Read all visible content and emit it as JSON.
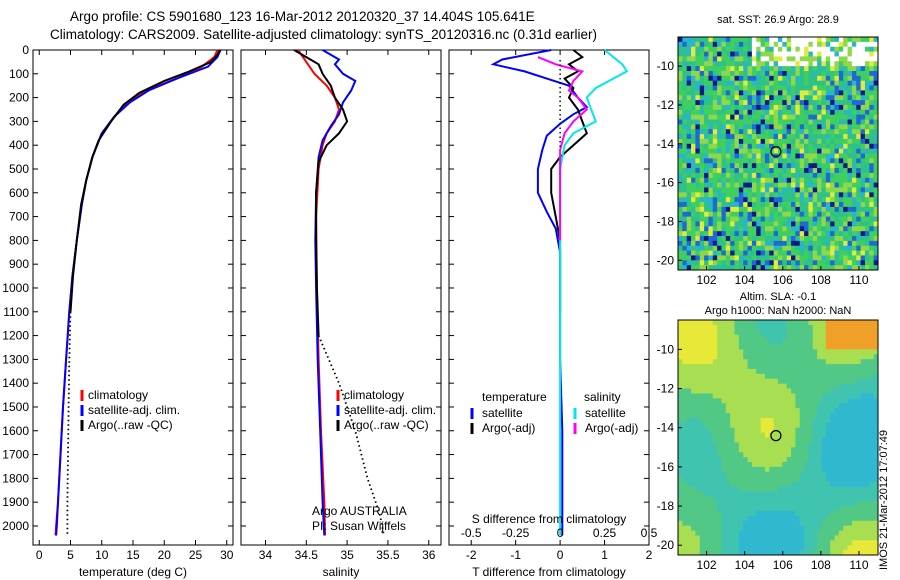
{
  "header": {
    "line1": "Argo profile: CS 5901680_123 16-Mar-2012 20120320_37 14.404S 105.641E",
    "line2": "Climatology: CARS2009. Satellite-adjusted climatology: synTS_20120316.nc (0.31d earlier)"
  },
  "map_top": {
    "title": "sat. SST: 26.9 Argo: 28.9",
    "xticks": [
      102,
      104,
      106,
      108,
      110
    ],
    "yticks": [
      -10,
      -12,
      -14,
      -16,
      -18,
      -20
    ],
    "float_lon": 105.641,
    "float_lat": -14.404,
    "xlim": [
      100.5,
      111
    ],
    "ylim": [
      -20.5,
      -8.5
    ]
  },
  "map_bottom": {
    "title1": "Altim. SLA: -0.1",
    "title2": "Argo h1000: NaN h2000: NaN",
    "xticks": [
      102,
      104,
      106,
      108,
      110
    ],
    "yticks": [
      -10,
      -12,
      -14,
      -16,
      -18,
      -20
    ],
    "float_lon": 105.641,
    "float_lat": -14.404,
    "xlim": [
      100.5,
      111
    ],
    "ylim": [
      -20.5,
      -8.5
    ]
  },
  "stamp": "IMOS 21-Mar-2012 17:07:49",
  "chart_data": [
    {
      "type": "line",
      "xlabel": "temperature (deg C)",
      "ylabel": "",
      "xlim": [
        -1,
        31
      ],
      "ylim": [
        2080,
        0
      ],
      "xticks": [
        0,
        5,
        10,
        15,
        20,
        25,
        30
      ],
      "yticks": [
        0,
        100,
        200,
        300,
        400,
        500,
        600,
        700,
        800,
        900,
        1000,
        1100,
        1200,
        1300,
        1400,
        1500,
        1600,
        1700,
        1800,
        1900,
        2000
      ],
      "legend": [
        "climatology",
        "satellite-adj. clim.",
        "Argo(..raw -QC)"
      ],
      "series": [
        {
          "name": "climatology",
          "color": "#ff0000",
          "points": [
            [
              28.5,
              0
            ],
            [
              28,
              30
            ],
            [
              26,
              70
            ],
            [
              22,
              120
            ],
            [
              17,
              170
            ],
            [
              14,
              220
            ],
            [
              12,
              280
            ],
            [
              10,
              350
            ],
            [
              8.5,
              450
            ],
            [
              7.5,
              550
            ],
            [
              6.8,
              650
            ],
            [
              6,
              800
            ],
            [
              5.3,
              950
            ],
            [
              4.8,
              1100
            ],
            [
              4.3,
              1300
            ],
            [
              3.8,
              1500
            ],
            [
              3.4,
              1700
            ],
            [
              3,
              1900
            ],
            [
              2.7,
              2000
            ],
            [
              2.6,
              2040
            ]
          ]
        },
        {
          "name": "satellite-adj. clim.",
          "color": "#0000ff",
          "points": [
            [
              29,
              0
            ],
            [
              28.5,
              30
            ],
            [
              27,
              70
            ],
            [
              22,
              120
            ],
            [
              17.5,
              170
            ],
            [
              14.5,
              220
            ],
            [
              12,
              280
            ],
            [
              10,
              350
            ],
            [
              8.5,
              450
            ],
            [
              7.5,
              550
            ],
            [
              6.8,
              650
            ],
            [
              6,
              800
            ],
            [
              5.3,
              950
            ],
            [
              4.8,
              1100
            ],
            [
              4.3,
              1300
            ],
            [
              3.8,
              1500
            ],
            [
              3.4,
              1700
            ],
            [
              3,
              1900
            ],
            [
              2.8,
              2000
            ],
            [
              2.7,
              2040
            ]
          ]
        },
        {
          "name": "Argo(..raw -QC)",
          "color": "#000000",
          "points": [
            [
              28.9,
              0
            ],
            [
              28.5,
              20
            ],
            [
              27.5,
              50
            ],
            [
              24,
              90
            ],
            [
              20,
              130
            ],
            [
              16,
              180
            ],
            [
              13.5,
              230
            ],
            [
              11.5,
              300
            ],
            [
              9.5,
              380
            ],
            [
              8.5,
              450
            ],
            [
              7.5,
              550
            ],
            [
              6.7,
              650
            ],
            [
              6,
              800
            ],
            [
              5.4,
              950
            ],
            [
              5.0,
              1100
            ]
          ]
        },
        {
          "name": "",
          "color": "#000000",
          "dotted": true,
          "points": [
            [
              5.0,
              1100
            ],
            [
              4.8,
              1300
            ],
            [
              4.7,
              1500
            ],
            [
              4.6,
              1700
            ],
            [
              4.5,
              1900
            ],
            [
              4.5,
              2040
            ]
          ]
        }
      ]
    },
    {
      "type": "line",
      "xlabel": "salinity",
      "ylabel": "",
      "xlim": [
        33.7,
        36.15
      ],
      "ylim": [
        2080,
        0
      ],
      "xticks": [
        34,
        34.5,
        35,
        35.5,
        36
      ],
      "legend": [
        "climatology",
        "satellite-adj. clim.",
        "Argo(..raw -QC)"
      ],
      "annotation": [
        "Argo AUSTRALIA",
        "PI: Susan Wijffels"
      ],
      "series": [
        {
          "name": "climatology",
          "color": "#ff0000",
          "points": [
            [
              34.4,
              0
            ],
            [
              34.5,
              50
            ],
            [
              34.6,
              100
            ],
            [
              34.75,
              150
            ],
            [
              34.85,
              200
            ],
            [
              34.9,
              250
            ],
            [
              34.85,
              300
            ],
            [
              34.75,
              350
            ],
            [
              34.7,
              400
            ],
            [
              34.65,
              500
            ],
            [
              34.62,
              700
            ],
            [
              34.63,
              1000
            ],
            [
              34.65,
              1300
            ],
            [
              34.68,
              1600
            ],
            [
              34.72,
              1900
            ],
            [
              34.73,
              2040
            ]
          ]
        },
        {
          "name": "satellite-adj. clim.",
          "color": "#0000ff",
          "points": [
            [
              34.7,
              0
            ],
            [
              34.9,
              40
            ],
            [
              34.85,
              60
            ],
            [
              34.95,
              100
            ],
            [
              35.1,
              130
            ],
            [
              35.05,
              170
            ],
            [
              34.95,
              220
            ],
            [
              34.9,
              270
            ],
            [
              34.8,
              320
            ],
            [
              34.7,
              380
            ],
            [
              34.65,
              450
            ],
            [
              34.62,
              600
            ],
            [
              34.61,
              800
            ],
            [
              34.62,
              1000
            ],
            [
              34.64,
              1300
            ],
            [
              34.67,
              1600
            ],
            [
              34.7,
              1900
            ],
            [
              34.72,
              2040
            ]
          ]
        },
        {
          "name": "Argo(..raw -QC)",
          "color": "#000000",
          "points": [
            [
              34.35,
              0
            ],
            [
              34.5,
              30
            ],
            [
              34.65,
              60
            ],
            [
              34.7,
              100
            ],
            [
              34.8,
              150
            ],
            [
              34.85,
              200
            ],
            [
              34.95,
              250
            ],
            [
              35.0,
              300
            ],
            [
              34.9,
              350
            ],
            [
              34.75,
              400
            ],
            [
              34.65,
              470
            ],
            [
              34.62,
              600
            ],
            [
              34.62,
              800
            ],
            [
              34.63,
              1000
            ],
            [
              34.65,
              1200
            ]
          ]
        },
        {
          "name": "",
          "color": "#000000",
          "dotted": true,
          "points": [
            [
              34.65,
              1200
            ],
            [
              34.9,
              1400
            ],
            [
              35.1,
              1600
            ],
            [
              35.25,
              1800
            ],
            [
              35.4,
              1950
            ],
            [
              35.45,
              2040
            ]
          ]
        }
      ]
    },
    {
      "type": "line",
      "xlabel": "T difference from climatology",
      "xlabel_top": "S difference from climatology",
      "ylabel": "",
      "xlim": [
        -2.5,
        2
      ],
      "ylim": [
        2080,
        0
      ],
      "xticks": [
        -2,
        -1,
        0,
        1,
        2
      ],
      "xticks_s": [
        "-0.5",
        "-0.25",
        "0",
        "0.25",
        "0.5"
      ],
      "legend_t_title": "temperature",
      "legend_s_title": "salinity",
      "legend": [
        "satellite",
        "Argo(-adj)",
        "satellite",
        "Argo(-adj)"
      ],
      "series": [
        {
          "name": "satellite",
          "color": "#0000ff",
          "points": [
            [
              -0.2,
              0
            ],
            [
              -1.3,
              40
            ],
            [
              -1.5,
              60
            ],
            [
              -0.8,
              90
            ],
            [
              -0.3,
              120
            ],
            [
              0.2,
              150
            ],
            [
              0.4,
              200
            ],
            [
              0.6,
              240
            ],
            [
              0.3,
              270
            ],
            [
              0.0,
              310
            ],
            [
              -0.3,
              360
            ],
            [
              -0.4,
              420
            ],
            [
              -0.5,
              500
            ],
            [
              -0.5,
              600
            ],
            [
              -0.3,
              680
            ],
            [
              -0.1,
              750
            ],
            [
              0,
              850
            ],
            [
              0,
              1000
            ],
            [
              0,
              1300
            ],
            [
              0.05,
              1600
            ],
            [
              0.05,
              1900
            ],
            [
              0.05,
              2040
            ]
          ]
        },
        {
          "name": "Argo(-adj)",
          "color": "#000000",
          "points": [
            [
              0.3,
              0
            ],
            [
              0.5,
              30
            ],
            [
              0.2,
              60
            ],
            [
              0.4,
              90
            ],
            [
              0.1,
              120
            ],
            [
              0.3,
              160
            ],
            [
              0.2,
              200
            ],
            [
              0.4,
              250
            ],
            [
              0.5,
              300
            ],
            [
              0.6,
              350
            ],
            [
              0.3,
              400
            ],
            [
              0,
              450
            ],
            [
              -0.2,
              500
            ],
            [
              -0.2,
              600
            ],
            [
              -0.1,
              700
            ],
            [
              0,
              800
            ],
            [
              0,
              1000
            ],
            [
              0,
              1100
            ]
          ]
        },
        {
          "name": "satellite",
          "color": "#00e8e8",
          "points": [
            [
              1.0,
              0
            ],
            [
              1.2,
              30
            ],
            [
              1.4,
              60
            ],
            [
              1.5,
              90
            ],
            [
              1.1,
              130
            ],
            [
              0.8,
              160
            ],
            [
              0.6,
              200
            ],
            [
              0.7,
              250
            ],
            [
              0.8,
              300
            ],
            [
              0.3,
              350
            ],
            [
              0.1,
              400
            ],
            [
              0,
              500
            ],
            [
              0,
              700
            ],
            [
              0,
              1000
            ],
            [
              0,
              1300
            ],
            [
              0,
              1600
            ],
            [
              0,
              1900
            ],
            [
              0,
              2040
            ]
          ]
        },
        {
          "name": "Argo(-adj)",
          "color": "#ff00ff",
          "points": [
            [
              -0.5,
              30
            ],
            [
              -0.1,
              60
            ],
            [
              0.5,
              90
            ],
            [
              0.3,
              130
            ],
            [
              0.2,
              170
            ],
            [
              0.4,
              200
            ],
            [
              0.6,
              250
            ],
            [
              0.3,
              300
            ],
            [
              0.1,
              350
            ],
            [
              0,
              420
            ],
            [
              0,
              600
            ],
            [
              0,
              800
            ]
          ]
        }
      ]
    }
  ]
}
